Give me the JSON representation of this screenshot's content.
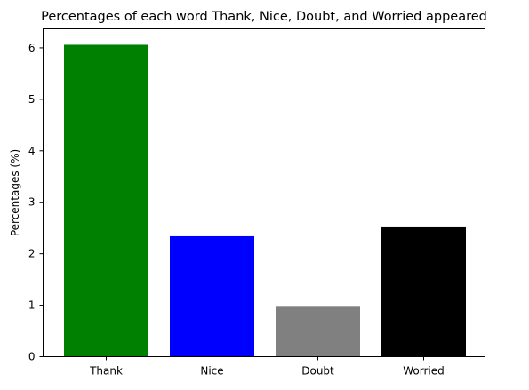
{
  "chart_data": {
    "type": "bar",
    "title": "Percentages of each word Thank, Nice, Doubt, and Worried appeared",
    "xlabel": "",
    "ylabel": "Percentages (%)",
    "categories": [
      "Thank",
      "Nice",
      "Doubt",
      "Worried"
    ],
    "values": [
      6.06,
      2.34,
      0.97,
      2.53
    ],
    "colors": [
      "#008000",
      "#0000ff",
      "#808080",
      "#000000"
    ],
    "ylim": [
      0,
      6.37
    ],
    "yticks": [
      "0",
      "1",
      "2",
      "3",
      "4",
      "5",
      "6"
    ],
    "grid": false,
    "legend": "none"
  }
}
